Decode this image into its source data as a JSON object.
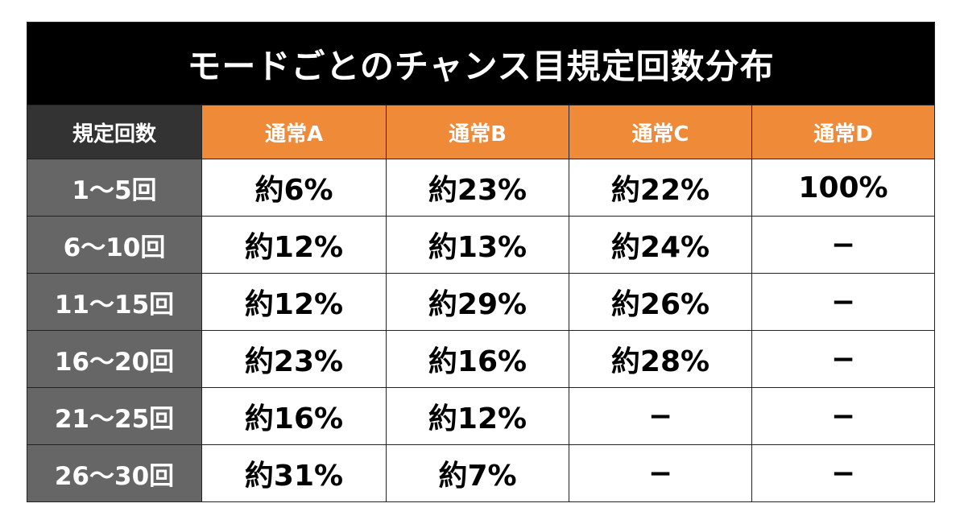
{
  "table": {
    "title": "モードごとのチャンス目規定回数分布",
    "header": [
      "規定回数",
      "通常A",
      "通常B",
      "通常C",
      "通常D"
    ],
    "rows": [
      [
        "1〜5回",
        "約6%",
        "約23%",
        "約22%",
        "100%"
      ],
      [
        "6〜10回",
        "約12%",
        "約13%",
        "約24%",
        "−"
      ],
      [
        "11〜15回",
        "約12%",
        "約29%",
        "約26%",
        "−"
      ],
      [
        "16〜20回",
        "約23%",
        "約16%",
        "約28%",
        "−"
      ],
      [
        "21〜25回",
        "約16%",
        "約12%",
        "−",
        "−"
      ],
      [
        "26〜30回",
        "約31%",
        "約7%",
        "−",
        "−"
      ]
    ]
  }
}
